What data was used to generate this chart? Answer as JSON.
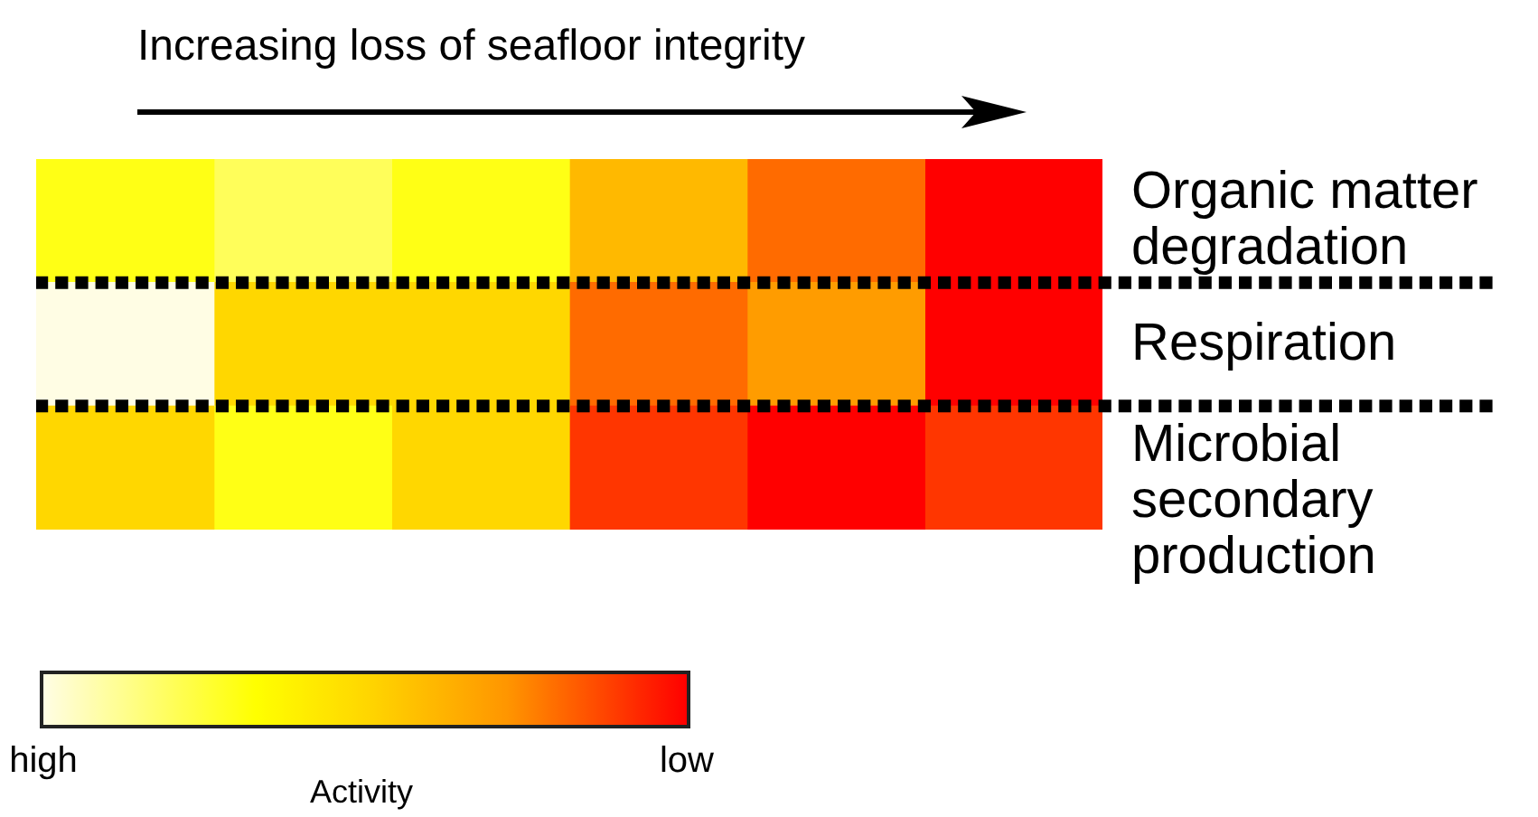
{
  "chart_data": {
    "type": "heatmap",
    "title": "Increasing loss of seafloor integrity",
    "clabel": "Activity",
    "categories": [
      null,
      null,
      null,
      null,
      null,
      null
    ],
    "y_categories": [
      "Organic matter degradation",
      "Respiration",
      "Microbial secondary production"
    ],
    "cells": [
      [
        0.7,
        0.8,
        0.7,
        0.4,
        0.2,
        0
      ],
      [
        1,
        0.5,
        0.5,
        0.2,
        0.3,
        0
      ],
      [
        0.5,
        0.7,
        0.5,
        0.1,
        0,
        0.1
      ]
    ],
    "clim": [
      1,
      0
    ],
    "cticks": [
      {
        "value": 1,
        "label": "high"
      },
      {
        "value": 0,
        "label": "low"
      }
    ]
  }
}
